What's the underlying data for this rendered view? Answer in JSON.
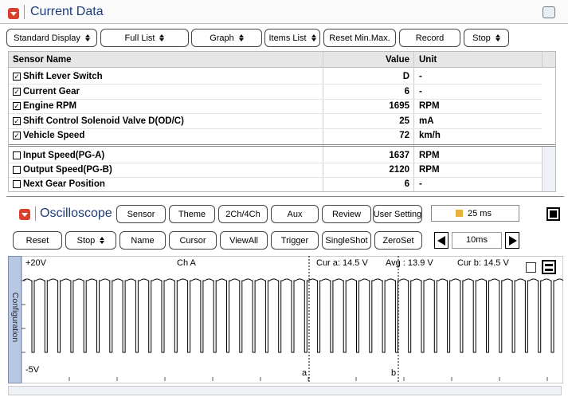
{
  "header": {
    "title": "Current Data"
  },
  "toolbar": {
    "buttons": [
      {
        "label": "Standard Display",
        "dropdown": true
      },
      {
        "label": "Full List",
        "dropdown": true
      },
      {
        "label": "Graph",
        "dropdown": true
      },
      {
        "label": "Items List",
        "dropdown": true
      },
      {
        "label": "Reset Min.Max.",
        "dropdown": false
      },
      {
        "label": "Record",
        "dropdown": false
      },
      {
        "label": "Stop",
        "dropdown": true
      }
    ]
  },
  "table": {
    "columns": [
      "Sensor Name",
      "Value",
      "Unit"
    ],
    "rows": [
      {
        "name": "Shift Lever Switch",
        "value": "D",
        "unit": "-",
        "checked": true
      },
      {
        "name": "Current Gear",
        "value": 6,
        "unit": "-",
        "checked": true
      },
      {
        "name": "Engine RPM",
        "value": 1695,
        "unit": "RPM",
        "checked": true
      },
      {
        "name": "Shift Control Solenoid Valve D(OD/C)",
        "value": 25,
        "unit": "mA",
        "checked": true
      },
      {
        "name": "Vehicle Speed",
        "value": 72,
        "unit": "km/h",
        "checked": true
      },
      {
        "name": "Input Speed(PG-A)",
        "value": 1637,
        "unit": "RPM",
        "checked": false
      },
      {
        "name": "Output Speed(PG-B)",
        "value": 2120,
        "unit": "RPM",
        "checked": false
      },
      {
        "name": "Next Gear Position",
        "value": 6,
        "unit": "-",
        "checked": false
      }
    ]
  },
  "oscilloscope": {
    "title": "Oscilloscope",
    "buttons": [
      "Sensor",
      "Theme",
      "2Ch/4Ch",
      "Aux",
      "Review",
      "User Setting"
    ],
    "time_div": "25 ms",
    "controls": [
      {
        "label": "Reset",
        "dropdown": false
      },
      {
        "label": "Stop",
        "dropdown": true
      },
      {
        "label": "Name",
        "dropdown": false
      },
      {
        "label": "Cursor",
        "dropdown": false
      },
      {
        "label": "ViewAll",
        "dropdown": false
      },
      {
        "label": "Trigger",
        "dropdown": false
      },
      {
        "label": "SingleShot",
        "dropdown": false
      },
      {
        "label": "ZeroSet",
        "dropdown": false
      }
    ],
    "time_scale": "10ms",
    "side_tab": "Configuration",
    "labels": {
      "top_voltage": "+20V",
      "channel": "Ch A",
      "cursor_a": "Cur a: 14.5 V",
      "average": "Avg : 13.9 V",
      "cursor_b": "Cur b: 14.5 V",
      "bottom_voltage": "-5V",
      "marker_a": "a",
      "marker_b": "b"
    }
  }
}
